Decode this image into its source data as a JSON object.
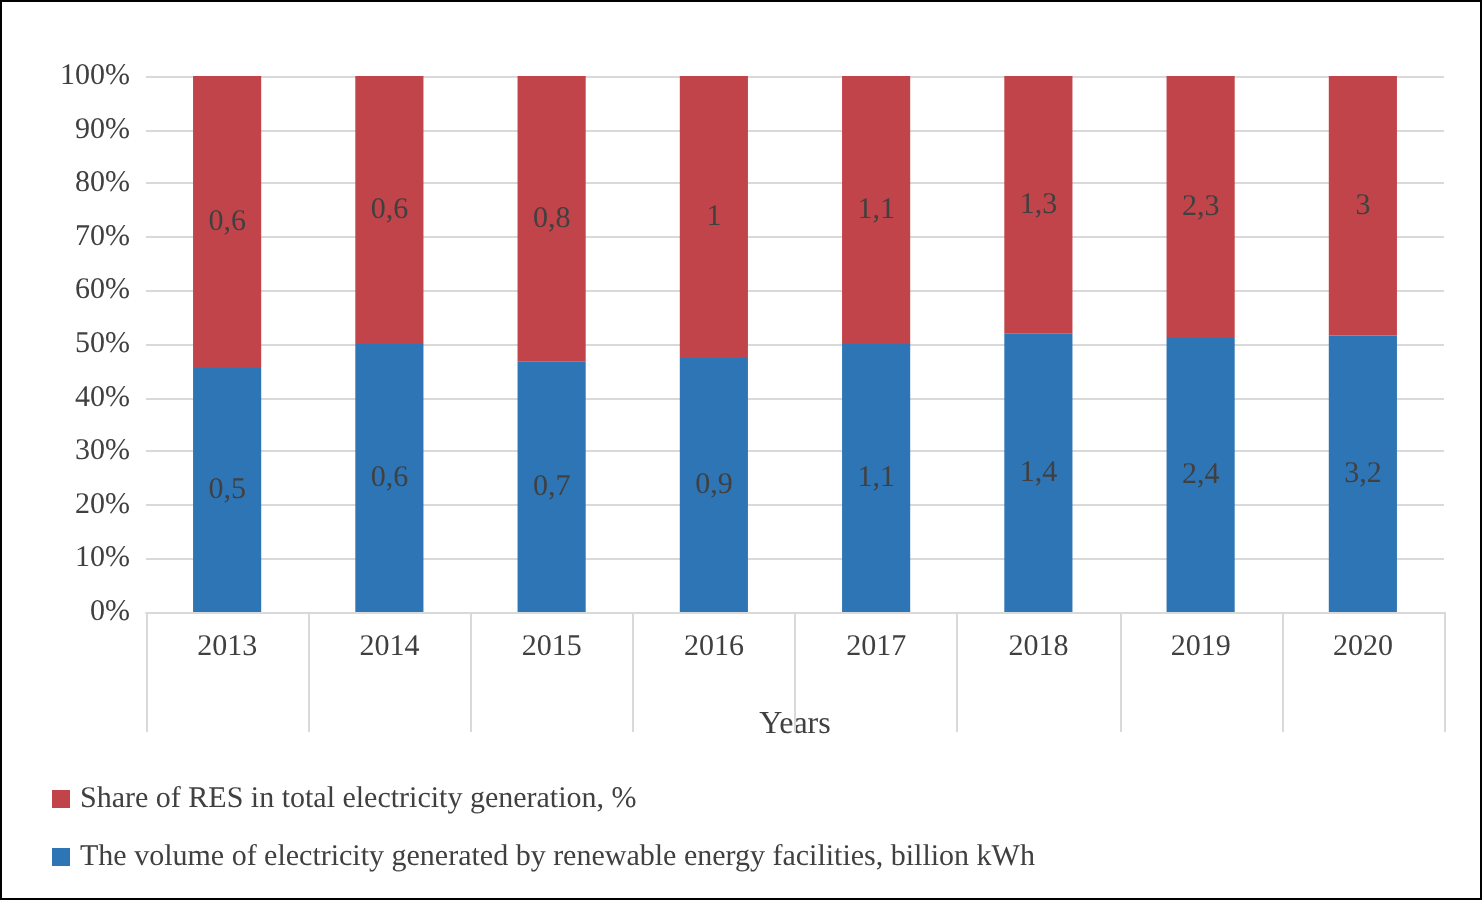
{
  "chart_data": {
    "type": "bar",
    "stacked": true,
    "categories": [
      "2013",
      "2014",
      "2015",
      "2016",
      "2017",
      "2018",
      "2019",
      "2020"
    ],
    "series": [
      {
        "name": "The volume of electricity generated by renewable energy facilities, billion kWh",
        "color": "#2e75b6",
        "values": [
          45.5,
          50,
          46.7,
          47.4,
          50,
          51.9,
          51.1,
          51.6
        ]
      },
      {
        "name": "Share of RES in total electricity generation, %",
        "color": "#c0444a",
        "values": [
          54.5,
          50,
          53.3,
          52.6,
          50,
          48.1,
          48.9,
          48.4
        ]
      }
    ],
    "annotations": [
      "0,5",
      "0,6",
      "0,7",
      "0,9",
      "1,1",
      "1,4",
      "2,4",
      "3,2",
      "0,6",
      "0,6",
      "0,8",
      "1",
      "1,1",
      "1,3",
      "2,3",
      "3"
    ],
    "xlabel": "Years",
    "ylim": [
      0,
      100
    ],
    "yticks": [
      {
        "value": 0,
        "label": "0%"
      },
      {
        "value": 10,
        "label": "10%"
      },
      {
        "value": 20,
        "label": "20%"
      },
      {
        "value": 30,
        "label": "30%"
      },
      {
        "value": 40,
        "label": "40%"
      },
      {
        "value": 50,
        "label": "50%"
      },
      {
        "value": 60,
        "label": "60%"
      },
      {
        "value": 70,
        "label": "70%"
      },
      {
        "value": 80,
        "label": "80%"
      },
      {
        "value": 90,
        "label": "90%"
      },
      {
        "value": 100,
        "label": "100%"
      }
    ],
    "grid": "y",
    "legend": "bottom"
  }
}
